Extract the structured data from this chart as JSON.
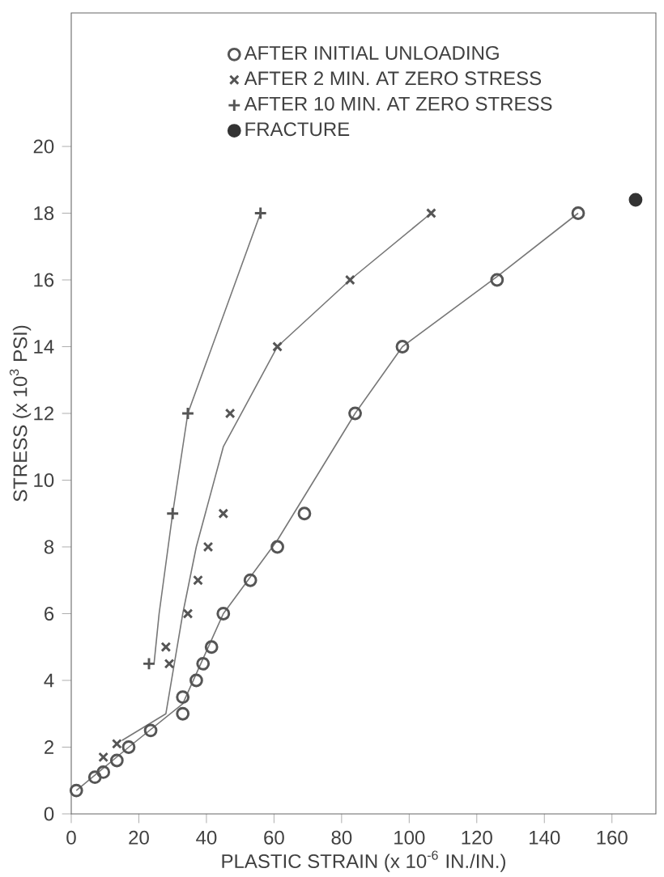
{
  "chart_data": {
    "type": "scatter",
    "xlabel": "PLASTIC STRAIN (x 10$^{-6}$ IN./IN.)",
    "ylabel": "STRESS (x 10$^{3}$ PSI)",
    "xlim": [
      0,
      173
    ],
    "ylim": [
      0,
      24
    ],
    "xticks": [
      0,
      20,
      40,
      60,
      80,
      100,
      120,
      140,
      160
    ],
    "yticks": [
      0,
      2,
      4,
      6,
      8,
      10,
      12,
      14,
      16,
      18,
      20
    ],
    "legend": "top",
    "grid": false,
    "series": [
      {
        "name": "AFTER INITIAL UNLOADING",
        "marker": "circle",
        "color": "#555555",
        "x": [
          1.5,
          7,
          9.5,
          13.5,
          17,
          23.5,
          33,
          33,
          37,
          39,
          41.5,
          45,
          53,
          61,
          69,
          84,
          98,
          126,
          150
        ],
        "values": [
          0.7,
          1.1,
          1.25,
          1.6,
          2,
          2.5,
          3,
          3.5,
          4,
          4.5,
          5,
          6,
          7,
          8,
          9,
          12,
          14,
          16,
          18
        ]
      },
      {
        "name": "AFTER 2 MIN. AT ZERO STRESS",
        "marker": "cross",
        "color": "#555555",
        "x": [
          9.5,
          13.5,
          28,
          29,
          34.5,
          37.5,
          40.5,
          45,
          47,
          61,
          82.5,
          106.5
        ],
        "values": [
          1.7,
          2.1,
          5,
          4.5,
          6,
          7,
          8,
          9,
          12,
          14,
          16,
          18
        ]
      },
      {
        "name": "AFTER 10 MIN. AT ZERO STRESS",
        "marker": "plus",
        "color": "#555555",
        "x": [
          23,
          30,
          34.5,
          56
        ],
        "values": [
          4.5,
          9,
          12,
          18
        ]
      },
      {
        "name": "FRACTURE",
        "marker": "dot",
        "color": "#333333",
        "x": [
          167
        ],
        "values": [
          18.4
        ]
      },
      {
        "type": "line",
        "marker": "none",
        "color": "#777777",
        "x": [
          1.5,
          17,
          33,
          45,
          61,
          84,
          98,
          126,
          150
        ],
        "values": [
          0.7,
          2,
          3.3,
          6,
          8.2,
          12,
          14,
          16.1,
          18
        ]
      },
      {
        "type": "line",
        "marker": "none",
        "color": "#777777",
        "x": [
          15,
          28,
          33,
          37,
          45,
          61,
          82.5,
          106.5
        ],
        "values": [
          2.2,
          3,
          6,
          8,
          11,
          14,
          16,
          18
        ]
      },
      {
        "type": "line",
        "marker": "none",
        "color": "#777777",
        "x": [
          22.5,
          24.5,
          26,
          30,
          34.5,
          56
        ],
        "values": [
          4.5,
          4.5,
          6,
          9,
          12,
          18
        ]
      }
    ]
  }
}
